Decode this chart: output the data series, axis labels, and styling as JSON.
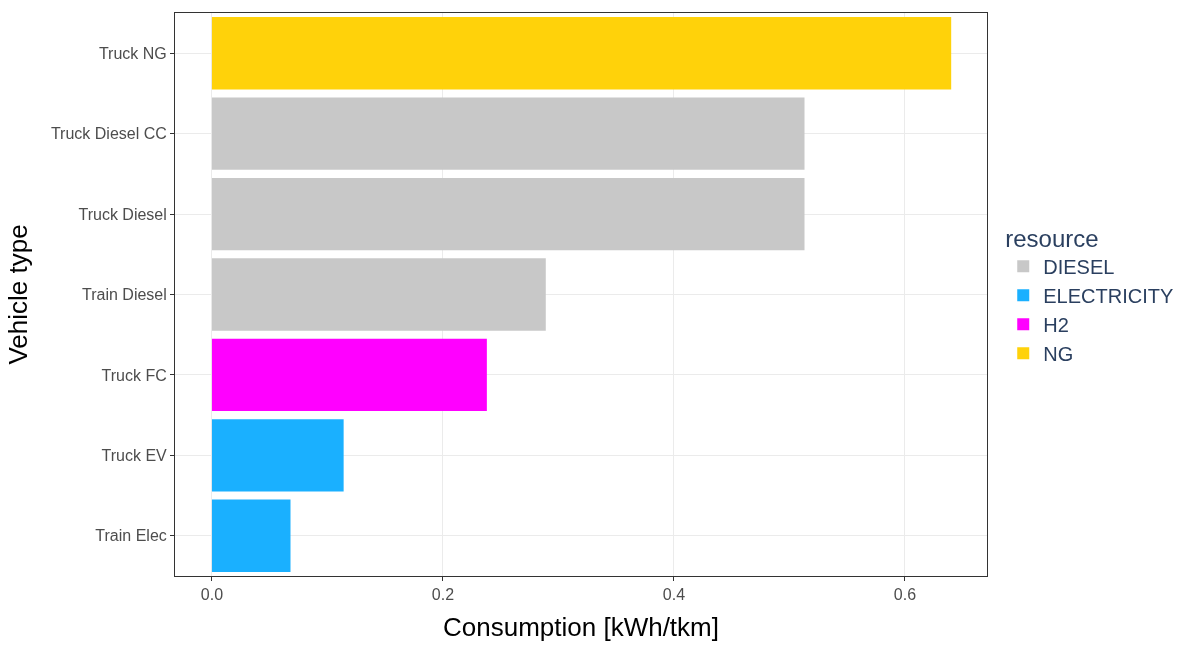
{
  "chart_data": {
    "type": "bar",
    "orientation": "horizontal",
    "xlabel": "Consumption [kWh/tkm]",
    "ylabel": "Vehicle type",
    "legend_title": "resource",
    "legend": "right",
    "grid": true,
    "categories": [
      "Truck NG",
      "Truck Diesel CC",
      "Truck Diesel",
      "Train Diesel",
      "Truck FC",
      "Truck EV",
      "Train Elec"
    ],
    "xlim": [
      -0.032,
      0.671
    ],
    "xticks": [
      {
        "value": 0,
        "label": "0.0"
      },
      0.2,
      0.4,
      0.6
    ],
    "series": [
      {
        "name": "DIESEL",
        "color": "#c8c8c8",
        "values": [
          null,
          0.513,
          0.513,
          0.289,
          null,
          null,
          null
        ]
      },
      {
        "name": "ELECTRICITY",
        "color": "#1ab0ff",
        "values": [
          null,
          null,
          null,
          null,
          null,
          0.114,
          0.068
        ]
      },
      {
        "name": "H2",
        "color": "#ff00ff",
        "values": [
          null,
          null,
          null,
          null,
          0.238,
          null,
          null
        ]
      },
      {
        "name": "NG",
        "color": "#ffd20a",
        "values": [
          0.64,
          null,
          null,
          null,
          null,
          null,
          null
        ]
      }
    ]
  }
}
